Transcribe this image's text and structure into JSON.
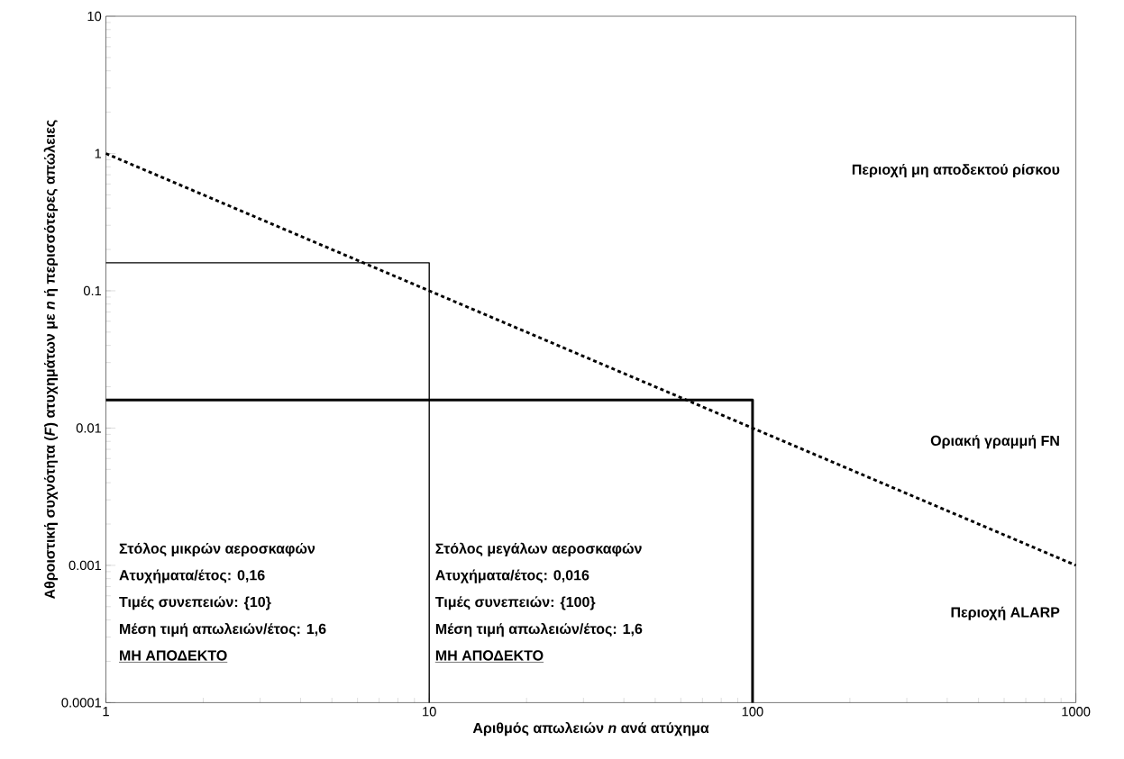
{
  "chart_data": {
    "type": "line",
    "log": "xy",
    "xlabel": "Αριθμός απωλειών *n* ανά ατύχημα",
    "ylabel": "Αθροιστική συχνότητα (*F*) ατυχημάτων με *n* ή περισσότερες απώλειες",
    "xlim": [
      1,
      1000
    ],
    "ylim": [
      0.0001,
      10
    ],
    "xticks": [
      {
        "value": 1,
        "label": "1"
      },
      {
        "value": 10,
        "label": "10"
      },
      {
        "value": 100,
        "label": "100"
      },
      {
        "value": 1000,
        "label": "1000"
      }
    ],
    "yticks": [
      {
        "value": 0.0001,
        "label": "0.0001"
      },
      {
        "value": 0.001,
        "label": "0.001"
      },
      {
        "value": 0.01,
        "label": "0.01"
      },
      {
        "value": 0.1,
        "label": "0.1"
      },
      {
        "value": 1,
        "label": "1"
      },
      {
        "value": 10,
        "label": "10"
      }
    ],
    "grid": false,
    "series": [
      {
        "color": "#000000",
        "line_style": "dotted",
        "x": [
          1,
          1000
        ],
        "values": [
          1,
          0.001
        ]
      },
      {
        "color": "#000000",
        "line_style": "solid",
        "x": [
          1,
          10,
          10
        ],
        "values": [
          0.16,
          0.16,
          0.0001
        ]
      },
      {
        "color": "#000000",
        "line_style": "solid",
        "x": [
          1,
          100,
          100
        ],
        "values": [
          0.016,
          0.016,
          0.0001
        ]
      }
    ],
    "annotations": [
      "Περιοχή μη αποδεκτού ρίσκου",
      "Οριακή γραμμή FN",
      "Περιοχή ALARP",
      "Στόλος μικρών αεροσκαφών",
      "Ατυχήματα/έτος: 0,16",
      "Τιμές συνεπειών: {10}",
      "Μέση τιμή απωλειών/έτος: 1,6",
      "ΜΗ ΑΠΟΔΕΚΤΟ",
      "Στόλος μεγάλων αεροσκαφών",
      "Ατυχήματα/έτος: 0,016",
      "Τιμές συνεπειών: {100}",
      "Μέση τιμή απωλειών/έτος: 1,6",
      "ΜΗ ΑΠΟΔΕΚΤΟ"
    ]
  }
}
